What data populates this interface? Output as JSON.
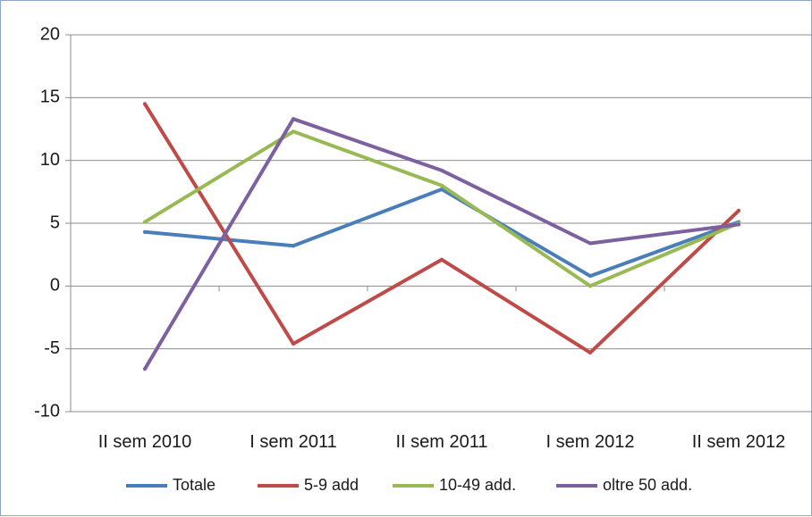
{
  "chart_data": {
    "type": "line",
    "title": "",
    "xlabel": "",
    "ylabel": "",
    "categories": [
      "II sem 2010",
      "I sem 2011",
      "II sem 2011",
      "I sem 2012",
      "II sem 2012"
    ],
    "ylim": [
      -10,
      20
    ],
    "yticks": [
      20,
      15,
      10,
      5,
      0,
      -5,
      -10
    ],
    "grid": true,
    "legend_position": "bottom",
    "series": [
      {
        "name": "Totale",
        "color": "#4a7ebb",
        "values": [
          4.3,
          3.2,
          7.7,
          0.8,
          5.1
        ]
      },
      {
        "name": "5-9 add",
        "color": "#be4b48",
        "values": [
          14.5,
          -4.6,
          2.1,
          -5.3,
          6.0
        ]
      },
      {
        "name": "10-49 add.",
        "color": "#98b954",
        "values": [
          5.1,
          12.3,
          8.0,
          0.0,
          5.0
        ]
      },
      {
        "name": "oltre 50 add.",
        "color": "#7d60a0",
        "values": [
          -6.6,
          13.3,
          9.2,
          3.4,
          4.9
        ]
      }
    ]
  }
}
